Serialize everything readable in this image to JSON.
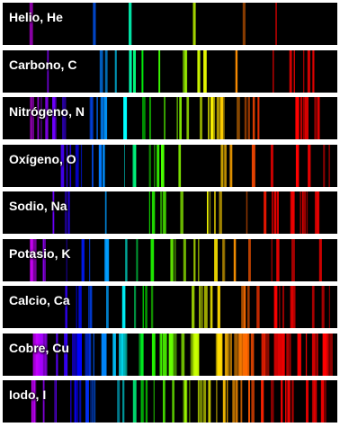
{
  "strips": [
    {
      "label": "Helio, He"
    },
    {
      "label": "Carbono, C"
    },
    {
      "label": "Nitrógeno, N"
    },
    {
      "label": "Oxígeno, O"
    },
    {
      "label": "Sodio, Na"
    },
    {
      "label": "Potasio, K"
    },
    {
      "label": "Calcio, Ca"
    },
    {
      "label": "Cobre, Cu"
    },
    {
      "label": "Iodo, I"
    }
  ]
}
